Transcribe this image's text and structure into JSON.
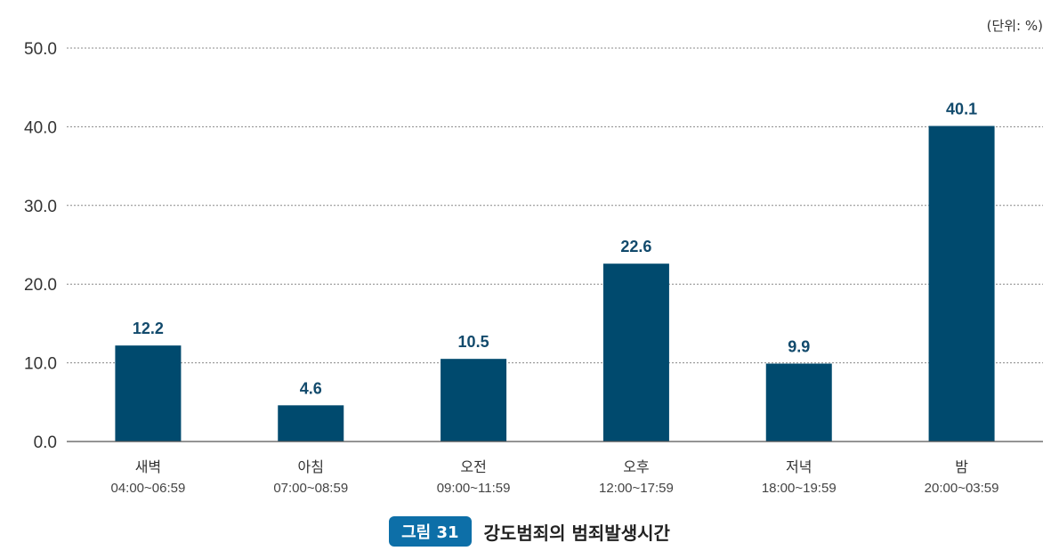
{
  "chart_data": {
    "type": "bar",
    "unit_label": "(단위: %)",
    "ylim": [
      0,
      50
    ],
    "yticks": [
      "0.0",
      "10.0",
      "20.0",
      "30.0",
      "40.0",
      "50.0"
    ],
    "categories": [
      {
        "name": "새벽",
        "time": "04:00~06:59"
      },
      {
        "name": "아침",
        "time": "07:00~08:59"
      },
      {
        "name": "오전",
        "time": "09:00~11:59"
      },
      {
        "name": "오후",
        "time": "12:00~17:59"
      },
      {
        "name": "저녁",
        "time": "18:00~19:59"
      },
      {
        "name": "밤",
        "time": "20:00~03:59"
      }
    ],
    "values": [
      12.2,
      4.6,
      10.5,
      22.6,
      9.9,
      40.1
    ],
    "value_labels": [
      "12.2",
      "4.6",
      "10.5",
      "22.6",
      "9.9",
      "40.1"
    ],
    "grid": true,
    "bar_color": "#004a6e"
  },
  "caption": {
    "badge": "그림 31",
    "title": "강도범죄의 범죄발생시간"
  }
}
